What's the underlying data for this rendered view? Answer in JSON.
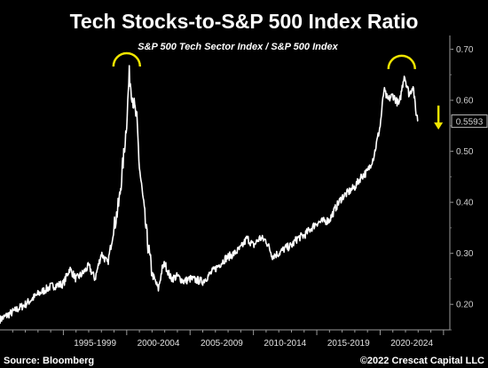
{
  "chart_data": {
    "type": "line",
    "title": "Tech Stocks-to-S&P 500 Index Ratio",
    "subtitle": "S&P 500 Tech Sector Index / S&P 500 Index",
    "ylim": [
      0.15,
      0.72
    ],
    "yticks": [
      0.2,
      0.3,
      0.4,
      0.5,
      0.6,
      0.7
    ],
    "ytick_labels": [
      "0.20",
      "0.30",
      "0.40",
      "0.50",
      "0.60",
      "0.70"
    ],
    "xlim": [
      1990.0,
      2025.5
    ],
    "x_period_labels": [
      "1995-1999",
      "2000-2004",
      "2005-2009",
      "2010-2014",
      "2015-2019",
      "2020-2024"
    ],
    "last_value_label": "0.5593",
    "series": [
      {
        "x": [
          1990.0,
          1991.0,
          1992.0,
          1993.0,
          1994.0,
          1995.0,
          1995.5,
          1996.0,
          1996.5,
          1997.0,
          1997.5,
          1998.0,
          1998.5,
          1999.0,
          1999.4,
          1999.8,
          2000.0,
          2000.2,
          2000.5,
          2000.8,
          2001.0,
          2001.3,
          2001.6,
          2002.0,
          2002.5,
          2002.8,
          2003.0,
          2003.5,
          2004.0,
          2004.5,
          2005.0,
          2006.0,
          2007.0,
          2007.8,
          2008.5,
          2009.0,
          2009.5,
          2010.0,
          2010.5,
          2011.0,
          2011.5,
          2012.0,
          2012.5,
          2013.0,
          2013.5,
          2014.0,
          2015.0,
          2016.0,
          2016.5,
          2017.0,
          2018.0,
          2018.5,
          2019.0,
          2019.5,
          2020.0,
          2020.3,
          2020.6,
          2021.0,
          2021.5,
          2021.9,
          2022.3,
          2022.6,
          2022.8,
          2023.0
        ],
        "y": [
          0.17,
          0.185,
          0.2,
          0.22,
          0.235,
          0.24,
          0.27,
          0.25,
          0.26,
          0.275,
          0.25,
          0.3,
          0.28,
          0.35,
          0.4,
          0.5,
          0.56,
          0.65,
          0.6,
          0.56,
          0.47,
          0.4,
          0.33,
          0.26,
          0.23,
          0.27,
          0.28,
          0.25,
          0.255,
          0.245,
          0.25,
          0.245,
          0.27,
          0.29,
          0.3,
          0.31,
          0.33,
          0.315,
          0.33,
          0.325,
          0.295,
          0.3,
          0.31,
          0.315,
          0.33,
          0.335,
          0.36,
          0.365,
          0.39,
          0.41,
          0.43,
          0.45,
          0.46,
          0.49,
          0.55,
          0.62,
          0.6,
          0.61,
          0.59,
          0.65,
          0.61,
          0.63,
          0.58,
          0.559
        ]
      }
    ],
    "annotations": [
      {
        "type": "arc",
        "x": 2000.0,
        "y": 0.68,
        "color": "#f0e500"
      },
      {
        "type": "arc",
        "x": 2021.7,
        "y": 0.675,
        "color": "#f0e500"
      },
      {
        "type": "down-arrow",
        "x": 2024.6,
        "y": 0.56,
        "color": "#f0e500"
      }
    ],
    "line_color": "#ffffff",
    "accent_color": "#f0e500",
    "grid": false
  },
  "footer": {
    "source": "Source: Bloomberg",
    "copyright": "©2022 Crescat Capital LLC"
  }
}
